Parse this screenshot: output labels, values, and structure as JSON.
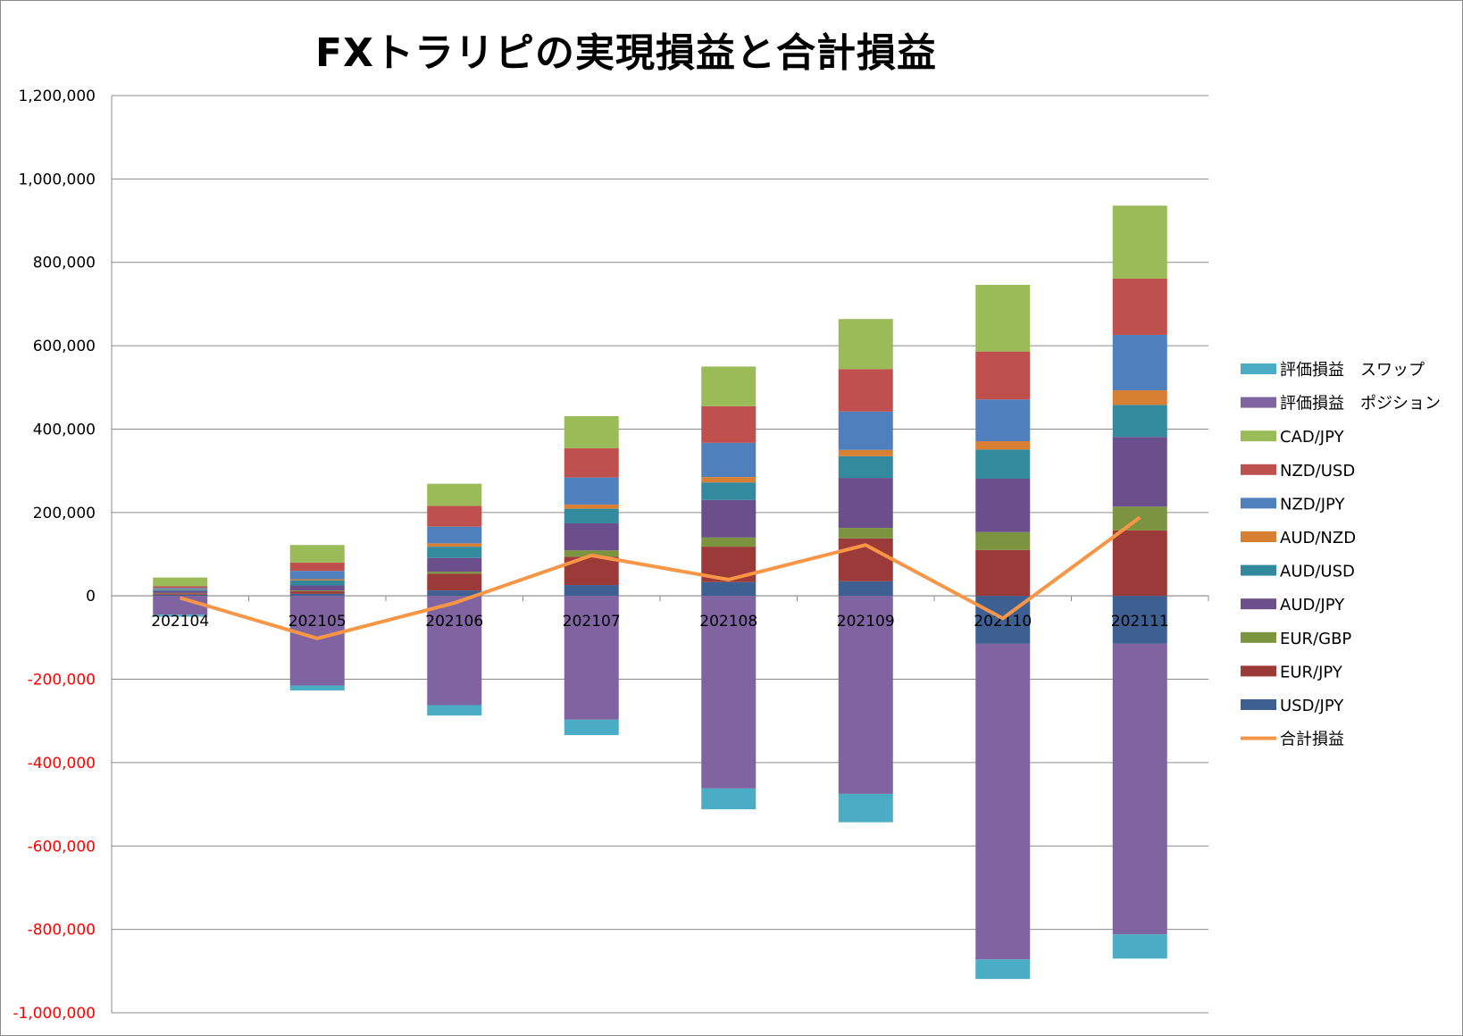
{
  "chart_data": {
    "type": "bar",
    "stacked": true,
    "title": "FXトラリピの実現損益と合計損益",
    "categories": [
      "202104",
      "202105",
      "202106",
      "202107",
      "202108",
      "202109",
      "202110",
      "202111"
    ],
    "ylim": [
      -1000000,
      1200000
    ],
    "yticks": [
      1200000,
      1000000,
      800000,
      600000,
      400000,
      200000,
      0,
      -200000,
      -400000,
      -600000,
      -800000,
      -1000000
    ],
    "ytick_labels": [
      "1,200,000",
      "1,000,000",
      "800,000",
      "600,000",
      "400,000",
      "200,000",
      "0",
      "-200,000",
      "-400,000",
      "-600,000",
      "-800,000",
      "-1,000,000"
    ],
    "negative_tick_color": "#ff0000",
    "grid": true,
    "legend_position": "right",
    "series": [
      {
        "name": "USD/JPY",
        "color": "#3e5f92",
        "values": [
          3000,
          5000,
          13000,
          26000,
          33000,
          35000,
          -115000,
          -115000
        ]
      },
      {
        "name": "EUR/JPY",
        "color": "#9b3a38",
        "values": [
          3000,
          6000,
          40000,
          68000,
          85000,
          103000,
          110000,
          157000
        ]
      },
      {
        "name": "EUR/GBP",
        "color": "#7c9440",
        "values": [
          1000,
          2000,
          5000,
          15000,
          22000,
          25000,
          43000,
          57000
        ]
      },
      {
        "name": "AUD/JPY",
        "color": "#6b4f8c",
        "values": [
          5000,
          12000,
          33000,
          65000,
          90000,
          120000,
          128000,
          167000
        ]
      },
      {
        "name": "AUD/USD",
        "color": "#338a9e",
        "values": [
          3000,
          12000,
          27000,
          35000,
          42000,
          52000,
          70000,
          77000
        ]
      },
      {
        "name": "AUD/NZD",
        "color": "#d97f33",
        "values": [
          1000,
          3000,
          8000,
          10000,
          13000,
          15000,
          20000,
          35000
        ]
      },
      {
        "name": "NZD/JPY",
        "color": "#4f80bd",
        "values": [
          3000,
          20000,
          40000,
          65000,
          82000,
          92000,
          100000,
          133000
        ]
      },
      {
        "name": "NZD/USD",
        "color": "#c0504d",
        "values": [
          4000,
          20000,
          50000,
          70000,
          88000,
          102000,
          115000,
          135000
        ]
      },
      {
        "name": "CAD/JPY",
        "color": "#9bbb59",
        "values": [
          21000,
          42000,
          53000,
          77000,
          95000,
          120000,
          160000,
          175000
        ]
      },
      {
        "name": "評価損益 ポジション",
        "color": "#8064a2",
        "values": [
          -45000,
          -215000,
          -262000,
          -297000,
          -462000,
          -475000,
          -757000,
          -697000
        ]
      },
      {
        "name": "評価損益 スワップ",
        "color": "#4bacc6",
        "values": [
          -5000,
          -12000,
          -25000,
          -37000,
          -50000,
          -68000,
          -47000,
          -58000
        ]
      }
    ],
    "line_series": {
      "name": "合計損益",
      "color": "#f79646",
      "values": [
        -5000,
        -102000,
        -17000,
        97000,
        39000,
        122000,
        -54000,
        188000
      ]
    },
    "legend_order": [
      "評価損益 スワップ",
      "評価損益 ポジション",
      "CAD/JPY",
      "NZD/USD",
      "NZD/JPY",
      "AUD/NZD",
      "AUD/USD",
      "AUD/JPY",
      "EUR/GBP",
      "EUR/JPY",
      "USD/JPY",
      "合計損益"
    ],
    "legend_display_labels": [
      "評価損益　スワップ",
      "評価損益　ポジション",
      "CAD/JPY",
      "NZD/USD",
      "NZD/JPY",
      "AUD/NZD",
      "AUD/USD",
      "AUD/JPY",
      "EUR/GBP",
      "EUR/JPY",
      "USD/JPY",
      "合計損益"
    ]
  }
}
